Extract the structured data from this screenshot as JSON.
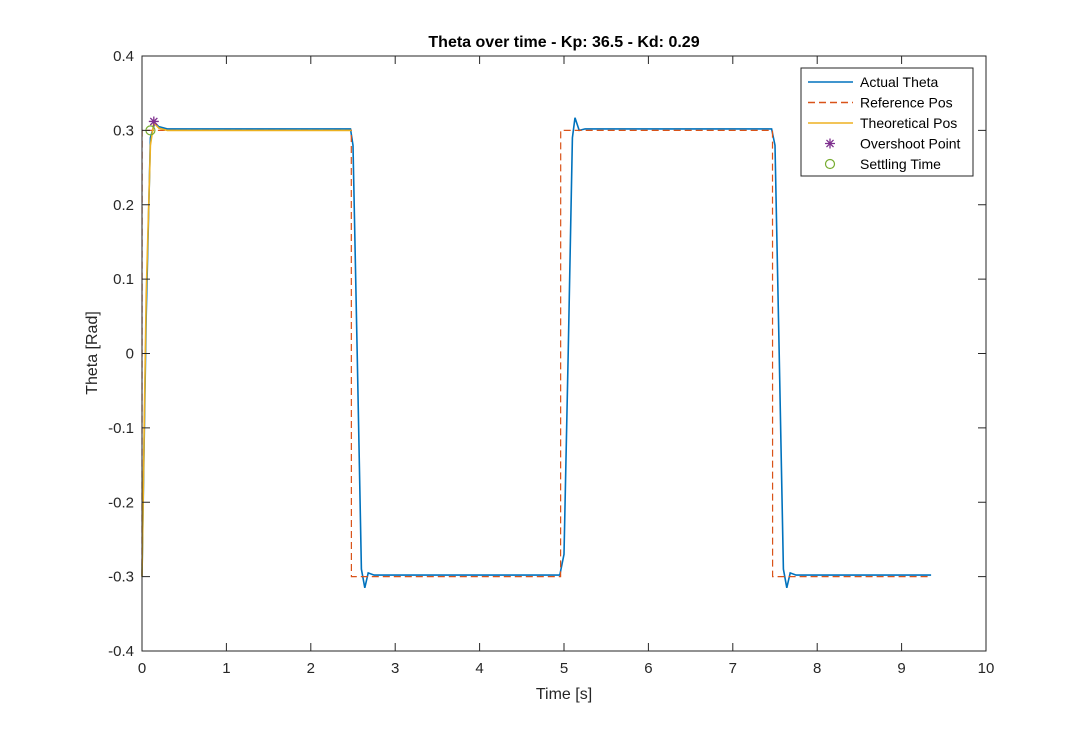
{
  "chart_data": {
    "type": "line",
    "title": "Theta over time - Kp: 36.5 - Kd: 0.29",
    "xlabel": "Time [s]",
    "ylabel": "Theta [Rad]",
    "xlim": [
      0,
      10
    ],
    "ylim": [
      -0.4,
      0.4
    ],
    "xticks": [
      0,
      1,
      2,
      3,
      4,
      5,
      6,
      7,
      8,
      9,
      10
    ],
    "yticks": [
      -0.4,
      -0.3,
      -0.2,
      -0.1,
      0,
      0.1,
      0.2,
      0.3,
      0.4
    ],
    "xtick_labels": [
      "0",
      "1",
      "2",
      "3",
      "4",
      "5",
      "6",
      "7",
      "8",
      "9",
      "10"
    ],
    "ytick_labels": [
      "-0.4",
      "-0.3",
      "-0.2",
      "-0.1",
      "0",
      "0.1",
      "0.2",
      "0.3",
      "0.4"
    ],
    "grid": false,
    "legend_position": "top-right",
    "series": [
      {
        "name": "Actual Theta",
        "style": "solid",
        "color": "#0072BD",
        "x": [
          0,
          0.05,
          0.1,
          0.15,
          0.2,
          0.3,
          2.47,
          2.5,
          2.55,
          2.6,
          2.64,
          2.68,
          2.75,
          4.95,
          5.0,
          5.05,
          5.1,
          5.13,
          5.18,
          5.25,
          7.46,
          7.5,
          7.55,
          7.6,
          7.64,
          7.68,
          7.75,
          9.35
        ],
        "y": [
          -0.3,
          0.05,
          0.29,
          0.31,
          0.305,
          0.302,
          0.302,
          0.28,
          0.0,
          -0.29,
          -0.315,
          -0.295,
          -0.298,
          -0.298,
          -0.27,
          0.0,
          0.29,
          0.317,
          0.3,
          0.302,
          0.302,
          0.28,
          0.0,
          -0.29,
          -0.315,
          -0.295,
          -0.298,
          -0.298
        ]
      },
      {
        "name": "Reference Pos",
        "style": "dashed",
        "color": "#D95319",
        "x": [
          0,
          0.001,
          2.48,
          2.481,
          4.96,
          4.961,
          7.47,
          7.471,
          9.35
        ],
        "y": [
          -0.3,
          0.3,
          0.3,
          -0.3,
          -0.3,
          0.3,
          0.3,
          -0.3,
          -0.3
        ]
      },
      {
        "name": "Theoretical Pos",
        "style": "solid",
        "color": "#EDB120",
        "x": [
          0,
          0.05,
          0.1,
          0.14,
          0.2,
          0.3,
          2.48
        ],
        "y": [
          -0.3,
          0.08,
          0.28,
          0.31,
          0.303,
          0.3,
          0.3
        ]
      },
      {
        "name": "Overshoot Point",
        "style": "marker-star",
        "color": "#7E2F8E",
        "x": [
          0.14
        ],
        "y": [
          0.312
        ]
      },
      {
        "name": "Settling Time",
        "style": "marker-circle",
        "color": "#77AC30",
        "x": [
          0.1
        ],
        "y": [
          0.3
        ]
      }
    ]
  }
}
